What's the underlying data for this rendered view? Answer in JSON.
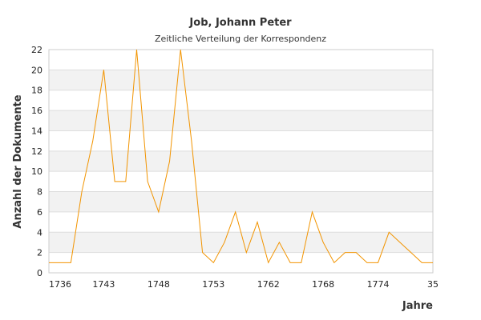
{
  "chart_data": {
    "type": "line",
    "title": "Job, Johann Peter",
    "subtitle": "Zeitliche Verteilung der Korrespondenz",
    "xlabel": "Jahre",
    "ylabel": "Anzahl der Dokumente",
    "ylim": [
      0,
      22
    ],
    "y_ticks": [
      0,
      2,
      4,
      6,
      8,
      10,
      12,
      14,
      16,
      18,
      20,
      22
    ],
    "x_tick_labels": [
      "1736",
      "1743",
      "1748",
      "1753",
      "1762",
      "1768",
      "1774",
      "35"
    ],
    "x_range": [
      0,
      35
    ],
    "grid": true,
    "line_color": "#f29400",
    "band_color": "#f2f2f2",
    "series": [
      {
        "x": [
          0,
          1,
          2,
          3,
          4,
          5,
          6,
          7,
          8,
          9,
          10,
          11,
          12,
          13,
          14,
          15,
          16,
          17,
          18,
          19,
          20,
          21,
          22,
          23,
          24,
          25,
          26,
          27,
          28,
          29,
          30,
          31,
          32,
          33,
          34,
          35
        ],
        "values": [
          1,
          1,
          1,
          8,
          13,
          20,
          9,
          9,
          22,
          9,
          6,
          11,
          22,
          13,
          2,
          1,
          3,
          6,
          2,
          5,
          1,
          3,
          1,
          1,
          6,
          3,
          1,
          2,
          2,
          1,
          1,
          4,
          3,
          2,
          1,
          1
        ]
      }
    ]
  }
}
